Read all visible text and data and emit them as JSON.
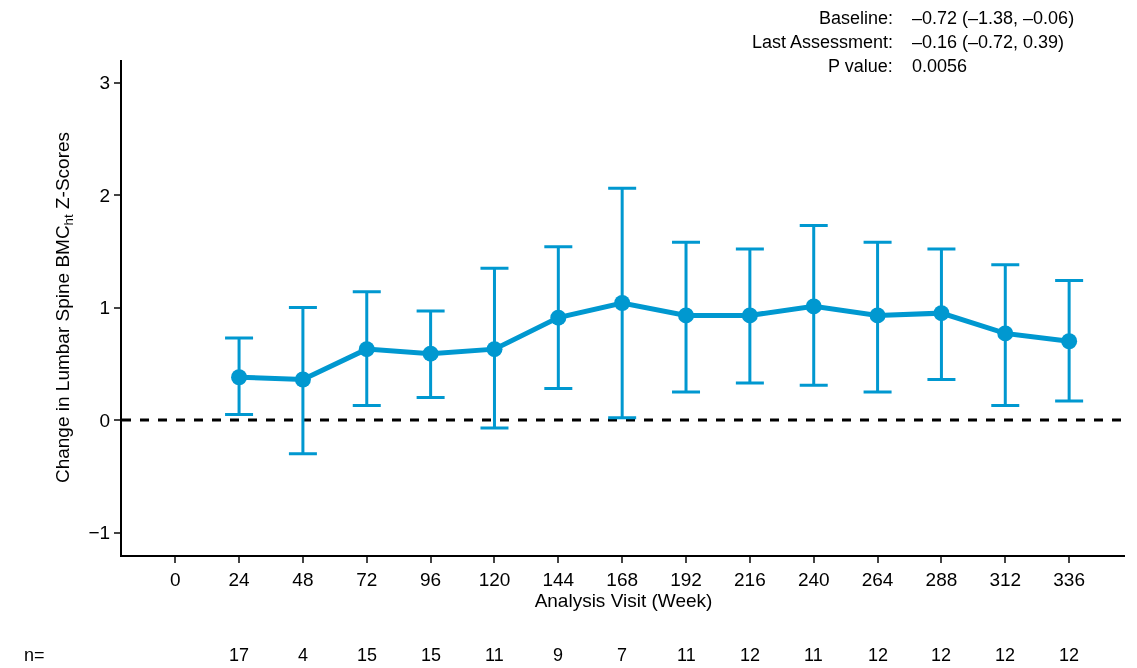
{
  "chart_data": {
    "type": "line",
    "ylabel": "Change in Lumbar Spine BMC$_{ht}$ Z-Scores",
    "xlabel": "Analysis Visit (Week)",
    "x": [
      24,
      48,
      72,
      96,
      120,
      144,
      168,
      192,
      216,
      240,
      264,
      288,
      312,
      336
    ],
    "series": [
      {
        "color": "#0098d0",
        "values": [
          0.38,
          0.36,
          0.63,
          0.59,
          0.63,
          0.91,
          1.04,
          0.93,
          0.93,
          1.01,
          0.93,
          0.95,
          0.77,
          0.7
        ],
        "errors": [
          [
            0.05,
            0.73
          ],
          [
            -0.3,
            1.0
          ],
          [
            0.13,
            1.14
          ],
          [
            0.2,
            0.97
          ],
          [
            -0.07,
            1.35
          ],
          [
            0.28,
            1.54
          ],
          [
            0.02,
            2.06
          ],
          [
            0.25,
            1.58
          ],
          [
            0.33,
            1.52
          ],
          [
            0.31,
            1.73
          ],
          [
            0.25,
            1.58
          ],
          [
            0.36,
            1.52
          ],
          [
            0.13,
            1.38
          ],
          [
            0.17,
            1.24
          ]
        ]
      }
    ],
    "xlim": [
      -20,
      357
    ],
    "xticks": [
      0,
      24,
      48,
      72,
      96,
      120,
      144,
      168,
      192,
      216,
      240,
      264,
      288,
      312,
      336
    ],
    "ylim": [
      -1.2,
      3.2
    ],
    "yticks": [
      {
        "value": -1,
        "label": "−1"
      },
      0,
      1,
      2,
      3
    ],
    "ref_lines": [
      {
        "axis": "y",
        "value": 0,
        "color": "#000000",
        "line_style": "dashed"
      }
    ],
    "marker": "circle",
    "line_style": "solid",
    "grid": false,
    "annotations": [
      "Baseline:",
      "Last Assessment:",
      "P value:",
      "–0.72 (–1.38, –0.06)",
      "–0.16 (–0.72, 0.39)",
      "0.0056",
      "n=",
      "17",
      "4",
      "15",
      "15",
      "11",
      "9",
      "7",
      "11",
      "12",
      "11",
      "12",
      "12",
      "12",
      "12"
    ]
  }
}
